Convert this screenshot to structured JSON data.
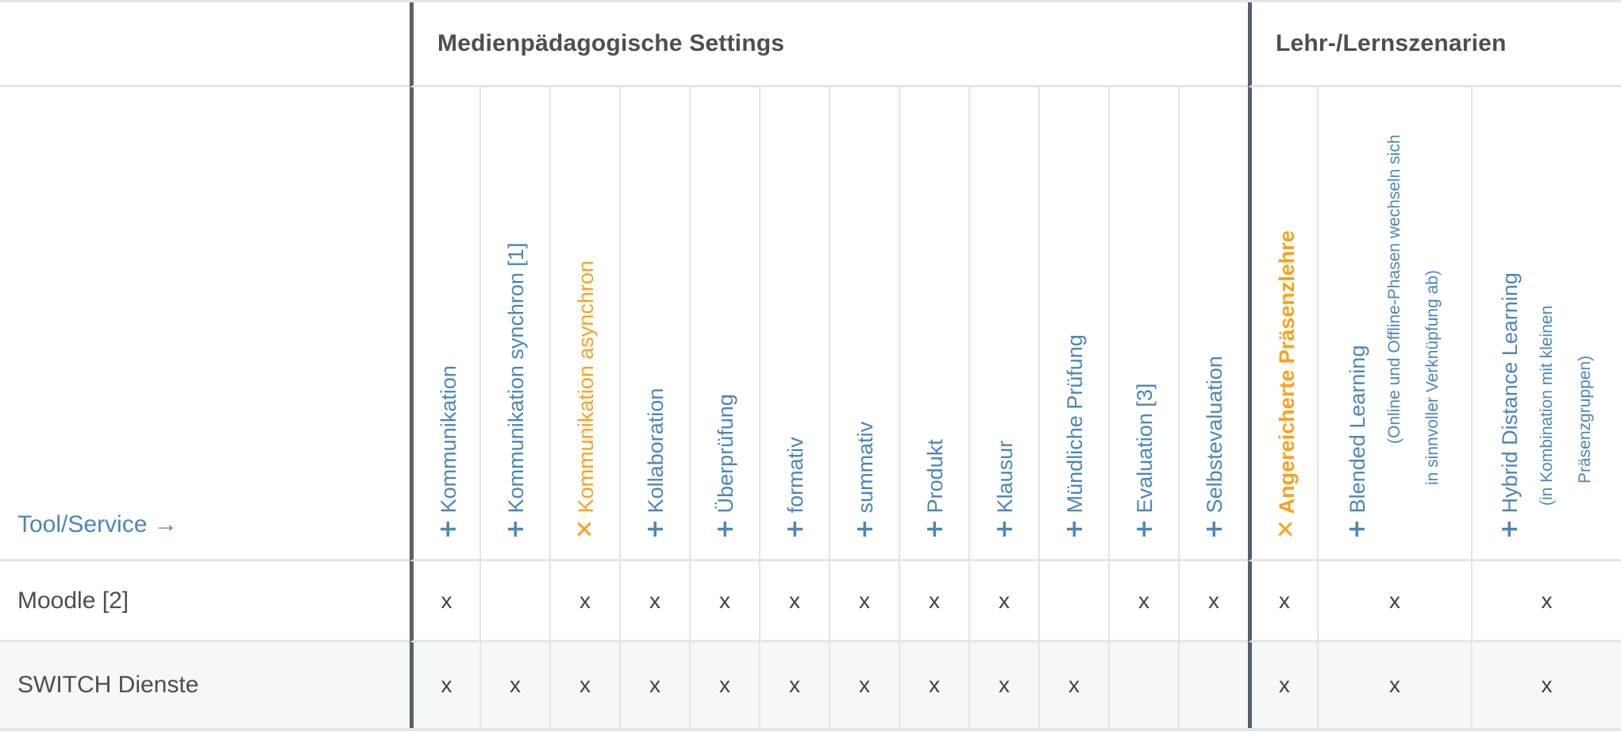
{
  "table": {
    "corner_label": "Tool/Service →",
    "groups": [
      {
        "label": "Medienpädagogische Settings"
      },
      {
        "label": "Lehr-/Lernszenarien"
      }
    ],
    "columns": [
      {
        "prefix": "+",
        "label": "Kommunikation",
        "color": "blue",
        "group": 0
      },
      {
        "prefix": "+",
        "label": "Kommunikation synchron [1]",
        "color": "blue",
        "group": 0
      },
      {
        "prefix": "✕",
        "label": "Kommunikation asynchron",
        "color": "orange",
        "group": 0
      },
      {
        "prefix": "+",
        "label": "Kollaboration",
        "color": "blue",
        "group": 0
      },
      {
        "prefix": "+",
        "label": "Überprüfung",
        "color": "blue",
        "group": 0
      },
      {
        "prefix": "+",
        "label": "formativ",
        "color": "blue",
        "group": 0
      },
      {
        "prefix": "+",
        "label": "summativ",
        "color": "blue",
        "group": 0
      },
      {
        "prefix": "+",
        "label": "Produkt",
        "color": "blue",
        "group": 0
      },
      {
        "prefix": "+",
        "label": "Klausur",
        "color": "blue",
        "group": 0
      },
      {
        "prefix": "+",
        "label": "Mündliche Prüfung",
        "color": "blue",
        "group": 0
      },
      {
        "prefix": "+",
        "label": "Evaluation [3]",
        "color": "blue",
        "group": 0
      },
      {
        "prefix": "+",
        "label": "Selbstevaluation",
        "color": "blue",
        "group": 0
      },
      {
        "prefix": "✕",
        "label": "Angereicherte Präsenzlehre",
        "color": "orange",
        "bold": true,
        "group": 1
      },
      {
        "prefix": "+",
        "label": "Blended Learning",
        "color": "blue",
        "group": 1,
        "sublines": [
          "(Online und Offline-Phasen wechseln sich",
          "in sinnvoller Verknüpfung ab)"
        ]
      },
      {
        "prefix": "+",
        "label": "Hybrid Distance Learning",
        "color": "blue",
        "group": 1,
        "sublines": [
          "(in Kombination mit kleinen",
          "Präsenzgruppen)"
        ]
      }
    ],
    "rows": [
      {
        "label": "Moodle [2]",
        "marks": [
          "x",
          "",
          "x",
          "x",
          "x",
          "x",
          "x",
          "x",
          "x",
          "",
          "x",
          "x",
          "x",
          "x",
          "x"
        ]
      },
      {
        "label": "SWITCH Dienste",
        "marks": [
          "x",
          "x",
          "x",
          "x",
          "x",
          "x",
          "x",
          "x",
          "x",
          "x",
          "",
          "",
          "x",
          "x",
          "x"
        ]
      }
    ],
    "colors": {
      "blue": "#4A86BC",
      "orange": "#F9A21D",
      "dark_text": "#4B4F54",
      "mark": "#3F4348",
      "divider_dark": "#57616B",
      "grid_light": "#E2E5E9",
      "alt_row_bg": "#F6F7F7"
    }
  }
}
